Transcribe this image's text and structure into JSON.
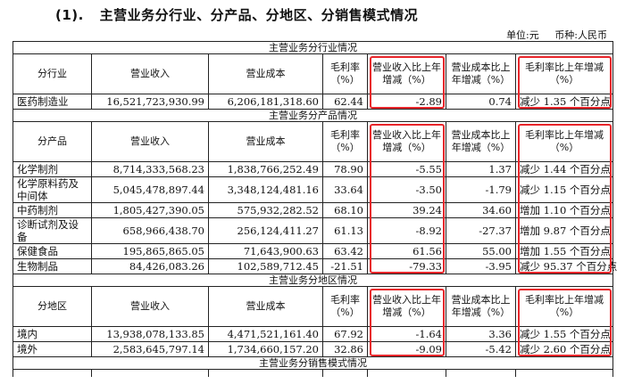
{
  "heading": {
    "number": "(1).",
    "title": "主营业务分行业、分产品、分地区、分销售模式情况"
  },
  "unit": {
    "currency_unit": "单位:元",
    "currency": "币种:人民币"
  },
  "sections": {
    "industry": {
      "title": "主营业务分行业情况",
      "header": [
        "分行业",
        "营业收入",
        "营业成本",
        "毛利率（%）",
        "营业收入比上年增减（%）",
        "营业成本比上年增减（%）",
        "毛利率比上年增减（%）"
      ],
      "rows": [
        [
          "医药制造业",
          "16,521,723,930.99",
          "6,206,181,318.60",
          "62.44",
          "-2.89",
          "0.74",
          "减少 1.35 个百分点"
        ]
      ]
    },
    "product": {
      "title": "主营业务分产品情况",
      "header": [
        "分产品",
        "营业收入",
        "营业成本",
        "毛利率（%）",
        "营业收入比上年增减（%）",
        "营业成本比上年增减（%）",
        "毛利率比上年增减（%）"
      ],
      "rows": [
        [
          "化学制剂",
          "8,714,333,568.23",
          "1,838,766,252.49",
          "78.90",
          "-5.55",
          "1.37",
          "减少 1.44 个百分点"
        ],
        [
          "化学原料药及中间体",
          "5,045,478,897.44",
          "3,348,124,481.16",
          "33.64",
          "-3.50",
          "-1.79",
          "减少 1.15 个百分点"
        ],
        [
          "中药制剂",
          "1,805,427,390.05",
          "575,932,282.52",
          "68.10",
          "39.24",
          "34.60",
          "增加 1.10 个百分点"
        ],
        [
          "诊断试剂及设备",
          "658,966,438.70",
          "256,124,411.27",
          "61.13",
          "-8.92",
          "-27.37",
          "增加 9.87 个百分点"
        ],
        [
          "保健食品",
          "195,865,865.05",
          "71,643,900.63",
          "63.42",
          "61.56",
          "55.00",
          "增加 1.55 个百分点"
        ],
        [
          "生物制品",
          "84,426,083.26",
          "102,589,712.45",
          "-21.51",
          "-79.33",
          "-3.95",
          "减少 95.37 个百分点"
        ]
      ]
    },
    "region": {
      "title": "主营业务分地区情况",
      "header": [
        "分地区",
        "营业收入",
        "营业成本",
        "毛利率（%）",
        "营业收入比上年增减（%）",
        "营业成本比上年增减（%）",
        "毛利率比上年增减（%）"
      ],
      "rows": [
        [
          "境内",
          "13,938,078,133.85",
          "4,471,521,161.40",
          "67.92",
          "-1.64",
          "3.36",
          "减少 1.55 个百分点"
        ],
        [
          "境外",
          "2,583,645,797.14",
          "1,734,660,157.20",
          "32.86",
          "-9.09",
          "-5.42",
          "减少 2.60 个百分点"
        ]
      ]
    },
    "sales_mode": {
      "title": "主营业务分销售模式情况"
    }
  },
  "highlight_color": "#e8262b"
}
